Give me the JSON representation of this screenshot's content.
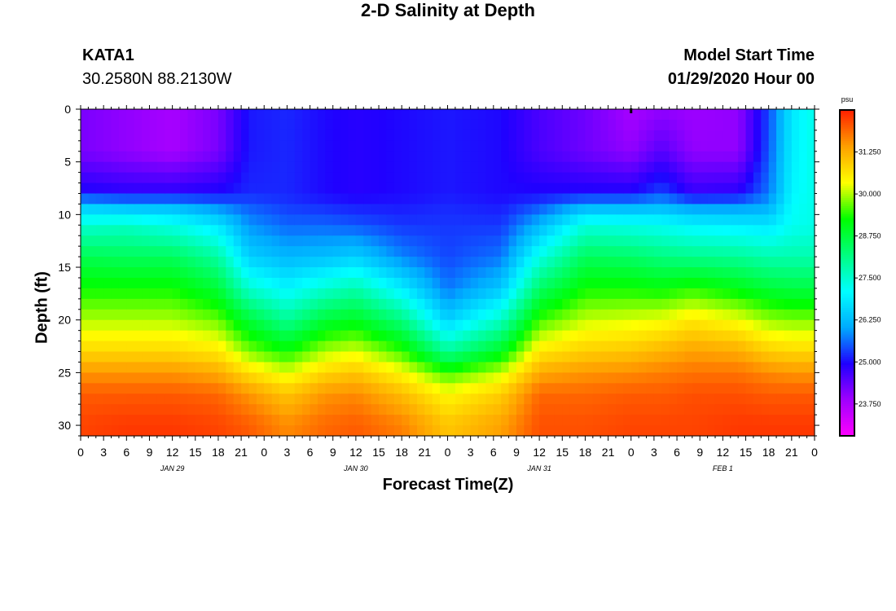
{
  "header": {
    "station_id": "KATA1",
    "station_coords": "30.2580N 88.2130W",
    "model_start_label": "Model Start Time",
    "model_start_time": "01/29/2020 Hour 00"
  },
  "chart_data": {
    "type": "heatmap",
    "title": "2-D Salinity at Depth",
    "xlabel": "Forecast Time(Z)",
    "ylabel": "Depth (ft)",
    "x_hours": [
      0,
      96
    ],
    "ylim": [
      0,
      31
    ],
    "y_inverted": true,
    "y_ticks": [
      0,
      5,
      10,
      15,
      20,
      25,
      30
    ],
    "x_ticks": [
      {
        "h": 0,
        "label": "0"
      },
      {
        "h": 3,
        "label": "3"
      },
      {
        "h": 6,
        "label": "6"
      },
      {
        "h": 9,
        "label": "9"
      },
      {
        "h": 12,
        "label": "12"
      },
      {
        "h": 15,
        "label": "15"
      },
      {
        "h": 18,
        "label": "18"
      },
      {
        "h": 21,
        "label": "21"
      },
      {
        "h": 24,
        "label": "0"
      },
      {
        "h": 27,
        "label": "3"
      },
      {
        "h": 30,
        "label": "6"
      },
      {
        "h": 33,
        "label": "9"
      },
      {
        "h": 36,
        "label": "12"
      },
      {
        "h": 39,
        "label": "15"
      },
      {
        "h": 42,
        "label": "18"
      },
      {
        "h": 45,
        "label": "21"
      },
      {
        "h": 48,
        "label": "0"
      },
      {
        "h": 51,
        "label": "3"
      },
      {
        "h": 54,
        "label": "6"
      },
      {
        "h": 57,
        "label": "9"
      },
      {
        "h": 60,
        "label": "12"
      },
      {
        "h": 63,
        "label": "15"
      },
      {
        "h": 66,
        "label": "18"
      },
      {
        "h": 69,
        "label": "21"
      },
      {
        "h": 72,
        "label": "0"
      },
      {
        "h": 75,
        "label": "3"
      },
      {
        "h": 78,
        "label": "6"
      },
      {
        "h": 81,
        "label": "9"
      },
      {
        "h": 84,
        "label": "12"
      },
      {
        "h": 87,
        "label": "15"
      },
      {
        "h": 90,
        "label": "18"
      },
      {
        "h": 93,
        "label": "21"
      },
      {
        "h": 96,
        "label": "0"
      }
    ],
    "day_labels": [
      {
        "h": 12,
        "label": "JAN 29"
      },
      {
        "h": 36,
        "label": "JAN 30"
      },
      {
        "h": 60,
        "label": "JAN 31"
      },
      {
        "h": 84,
        "label": "FEB 1"
      }
    ],
    "colorbar": {
      "unit": "psu",
      "min": 22.8,
      "max": 32.5,
      "tick_values": [
        31.25,
        30.0,
        28.75,
        27.5,
        26.25,
        25.0,
        23.75
      ],
      "tick_labels": [
        "31.250",
        "30.000",
        "28.750",
        "27.500",
        "26.250",
        "25.000",
        "23.750"
      ],
      "colors": [
        "#ff00ff",
        "#a000ff",
        "#2000ff",
        "#00aaff",
        "#00ffff",
        "#00ff80",
        "#00ff00",
        "#ffff00",
        "#ffa000",
        "#ff2000"
      ]
    },
    "profile_depths_ft": [
      0,
      4,
      8,
      9,
      11,
      14,
      17,
      20,
      23,
      25,
      27,
      30,
      31
    ],
    "profiles": [
      {
        "h": 0,
        "values": [
          24.2,
          24.2,
          25.0,
          26.3,
          27.5,
          28.6,
          29.3,
          30.0,
          30.8,
          31.5,
          32.0,
          32.2,
          32.2
        ]
      },
      {
        "h": 6,
        "values": [
          24.0,
          24.0,
          24.9,
          26.1,
          27.6,
          28.5,
          29.3,
          30.0,
          30.8,
          31.5,
          32.0,
          32.3,
          32.3
        ]
      },
      {
        "h": 12,
        "values": [
          23.8,
          23.8,
          24.9,
          26.1,
          27.3,
          28.5,
          29.3,
          30.0,
          30.8,
          31.5,
          32.0,
          32.3,
          32.3
        ]
      },
      {
        "h": 18,
        "values": [
          24.2,
          24.2,
          25.0,
          25.7,
          26.8,
          27.9,
          28.8,
          29.7,
          30.6,
          31.3,
          31.9,
          32.2,
          32.2
        ]
      },
      {
        "h": 22,
        "values": [
          25.1,
          25.1,
          25.2,
          25.5,
          25.9,
          26.5,
          27.5,
          28.8,
          29.8,
          30.7,
          31.5,
          32.0,
          32.0
        ]
      },
      {
        "h": 27,
        "values": [
          25.2,
          25.2,
          25.2,
          25.3,
          25.6,
          26.2,
          27.0,
          28.0,
          29.3,
          30.2,
          31.0,
          31.6,
          31.6
        ]
      },
      {
        "h": 32,
        "values": [
          25.0,
          25.0,
          25.0,
          25.2,
          25.6,
          26.3,
          27.5,
          28.8,
          30.0,
          30.8,
          31.5,
          31.9,
          31.9
        ]
      },
      {
        "h": 36,
        "values": [
          24.9,
          24.9,
          24.9,
          25.1,
          25.5,
          26.5,
          27.8,
          29.0,
          30.2,
          31.0,
          31.6,
          32.0,
          32.0
        ]
      },
      {
        "h": 42,
        "values": [
          25.0,
          25.0,
          25.0,
          25.1,
          25.3,
          25.8,
          26.9,
          28.2,
          29.5,
          30.4,
          31.1,
          31.7,
          31.7
        ]
      },
      {
        "h": 48,
        "values": [
          25.1,
          25.1,
          25.1,
          25.2,
          25.3,
          25.4,
          25.7,
          26.5,
          28.0,
          29.5,
          30.4,
          31.0,
          31.0
        ]
      },
      {
        "h": 55,
        "values": [
          25.0,
          25.0,
          25.0,
          25.1,
          25.3,
          25.7,
          26.4,
          27.6,
          29.0,
          30.1,
          30.9,
          31.4,
          31.4
        ]
      },
      {
        "h": 60,
        "values": [
          24.6,
          24.6,
          25.0,
          25.4,
          26.2,
          27.3,
          28.4,
          29.5,
          30.6,
          31.3,
          31.9,
          32.1,
          32.1
        ]
      },
      {
        "h": 66,
        "values": [
          24.3,
          24.3,
          25.0,
          26.0,
          27.4,
          28.5,
          29.3,
          30.1,
          30.9,
          31.5,
          31.9,
          32.1,
          32.1
        ]
      },
      {
        "h": 72,
        "values": [
          23.8,
          24.0,
          25.0,
          26.0,
          27.3,
          28.4,
          29.3,
          30.2,
          31.0,
          31.6,
          32.0,
          32.2,
          32.2
        ]
      },
      {
        "h": 76,
        "values": [
          24.0,
          24.5,
          25.4,
          26.1,
          27.2,
          28.2,
          29.2,
          30.3,
          31.2,
          31.7,
          32.0,
          32.2,
          32.2
        ]
      },
      {
        "h": 80,
        "values": [
          23.9,
          24.0,
          24.8,
          25.8,
          27.0,
          28.1,
          29.4,
          30.6,
          31.4,
          31.8,
          32.1,
          32.2,
          32.2
        ]
      },
      {
        "h": 86,
        "values": [
          24.0,
          24.0,
          24.9,
          25.8,
          26.9,
          28.0,
          29.1,
          30.3,
          31.3,
          31.8,
          32.1,
          32.3,
          32.3
        ]
      },
      {
        "h": 90,
        "values": [
          25.4,
          25.5,
          25.7,
          26.0,
          26.8,
          27.8,
          28.8,
          29.9,
          30.9,
          31.6,
          32.0,
          32.3,
          32.3
        ]
      },
      {
        "h": 93,
        "values": [
          26.8,
          26.9,
          27.0,
          27.1,
          27.2,
          27.8,
          28.7,
          29.8,
          30.8,
          31.5,
          32.0,
          32.3,
          32.3
        ]
      },
      {
        "h": 96,
        "values": [
          27.3,
          27.3,
          27.3,
          27.3,
          27.3,
          27.8,
          28.7,
          29.8,
          30.8,
          31.5,
          32.0,
          32.3,
          32.3
        ]
      }
    ]
  }
}
